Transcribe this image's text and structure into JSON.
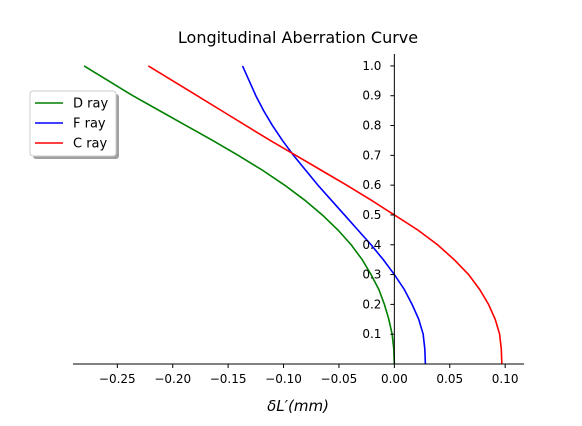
{
  "chart_data": {
    "type": "line",
    "title": "Longitudinal Aberration Curve",
    "xlabel": "δL′(mm)",
    "ylabel": "",
    "xlim": [
      -0.29,
      0.117
    ],
    "ylim": [
      0.0,
      1.04
    ],
    "x_ticks": [
      -0.25,
      -0.2,
      -0.15,
      -0.1,
      -0.05,
      0.0,
      0.05,
      0.1
    ],
    "x_tick_labels": [
      "−0.25",
      "−0.20",
      "−0.15",
      "−0.10",
      "−0.05",
      "0.00",
      "0.05",
      "0.10"
    ],
    "y_ticks": [
      0.1,
      0.2,
      0.3,
      0.4,
      0.5,
      0.6,
      0.7,
      0.8,
      0.9,
      1.0
    ],
    "y_tick_labels": [
      "0.1",
      "0.2",
      "0.3",
      "0.4",
      "0.5",
      "0.6",
      "0.7",
      "0.8",
      "0.9",
      "1.0"
    ],
    "grid": false,
    "legend_position": "upper-left",
    "series": [
      {
        "name": "D ray",
        "color": "#008000",
        "points": [
          [
            0.0,
            0.0
          ],
          [
            -0.0005,
            0.05
          ],
          [
            -0.002,
            0.1
          ],
          [
            -0.005,
            0.15
          ],
          [
            -0.009,
            0.2
          ],
          [
            -0.014,
            0.25
          ],
          [
            -0.021,
            0.3
          ],
          [
            -0.029,
            0.35
          ],
          [
            -0.039,
            0.4
          ],
          [
            -0.051,
            0.45
          ],
          [
            -0.065,
            0.5
          ],
          [
            -0.081,
            0.55
          ],
          [
            -0.099,
            0.6
          ],
          [
            -0.119,
            0.65
          ],
          [
            -0.141,
            0.7
          ],
          [
            -0.164,
            0.75
          ],
          [
            -0.188,
            0.8
          ],
          [
            -0.212,
            0.85
          ],
          [
            -0.236,
            0.9
          ],
          [
            -0.258,
            0.95
          ],
          [
            -0.28,
            1.0
          ]
        ]
      },
      {
        "name": "F ray",
        "color": "#0000ff",
        "points": [
          [
            0.028,
            0.0
          ],
          [
            0.0275,
            0.05
          ],
          [
            0.026,
            0.1
          ],
          [
            0.022,
            0.15
          ],
          [
            0.016,
            0.2
          ],
          [
            0.009,
            0.25
          ],
          [
            0.0,
            0.3
          ],
          [
            -0.01,
            0.35
          ],
          [
            -0.021,
            0.4
          ],
          [
            -0.033,
            0.45
          ],
          [
            -0.045,
            0.5
          ],
          [
            -0.057,
            0.55
          ],
          [
            -0.069,
            0.6
          ],
          [
            -0.08,
            0.65
          ],
          [
            -0.091,
            0.7
          ],
          [
            -0.101,
            0.75
          ],
          [
            -0.11,
            0.8
          ],
          [
            -0.118,
            0.85
          ],
          [
            -0.125,
            0.9
          ],
          [
            -0.131,
            0.95
          ],
          [
            -0.137,
            1.0
          ]
        ]
      },
      {
        "name": "C ray",
        "color": "#ff0000",
        "points": [
          [
            0.097,
            0.0
          ],
          [
            0.0965,
            0.05
          ],
          [
            0.095,
            0.1
          ],
          [
            0.091,
            0.15
          ],
          [
            0.085,
            0.2
          ],
          [
            0.077,
            0.25
          ],
          [
            0.067,
            0.3
          ],
          [
            0.054,
            0.35
          ],
          [
            0.039,
            0.4
          ],
          [
            0.021,
            0.45
          ],
          [
            0.0,
            0.5
          ],
          [
            -0.021,
            0.55
          ],
          [
            -0.043,
            0.6
          ],
          [
            -0.066,
            0.65
          ],
          [
            -0.089,
            0.7
          ],
          [
            -0.112,
            0.75
          ],
          [
            -0.134,
            0.8
          ],
          [
            -0.156,
            0.85
          ],
          [
            -0.178,
            0.9
          ],
          [
            -0.2,
            0.95
          ],
          [
            -0.222,
            1.0
          ]
        ]
      }
    ]
  }
}
